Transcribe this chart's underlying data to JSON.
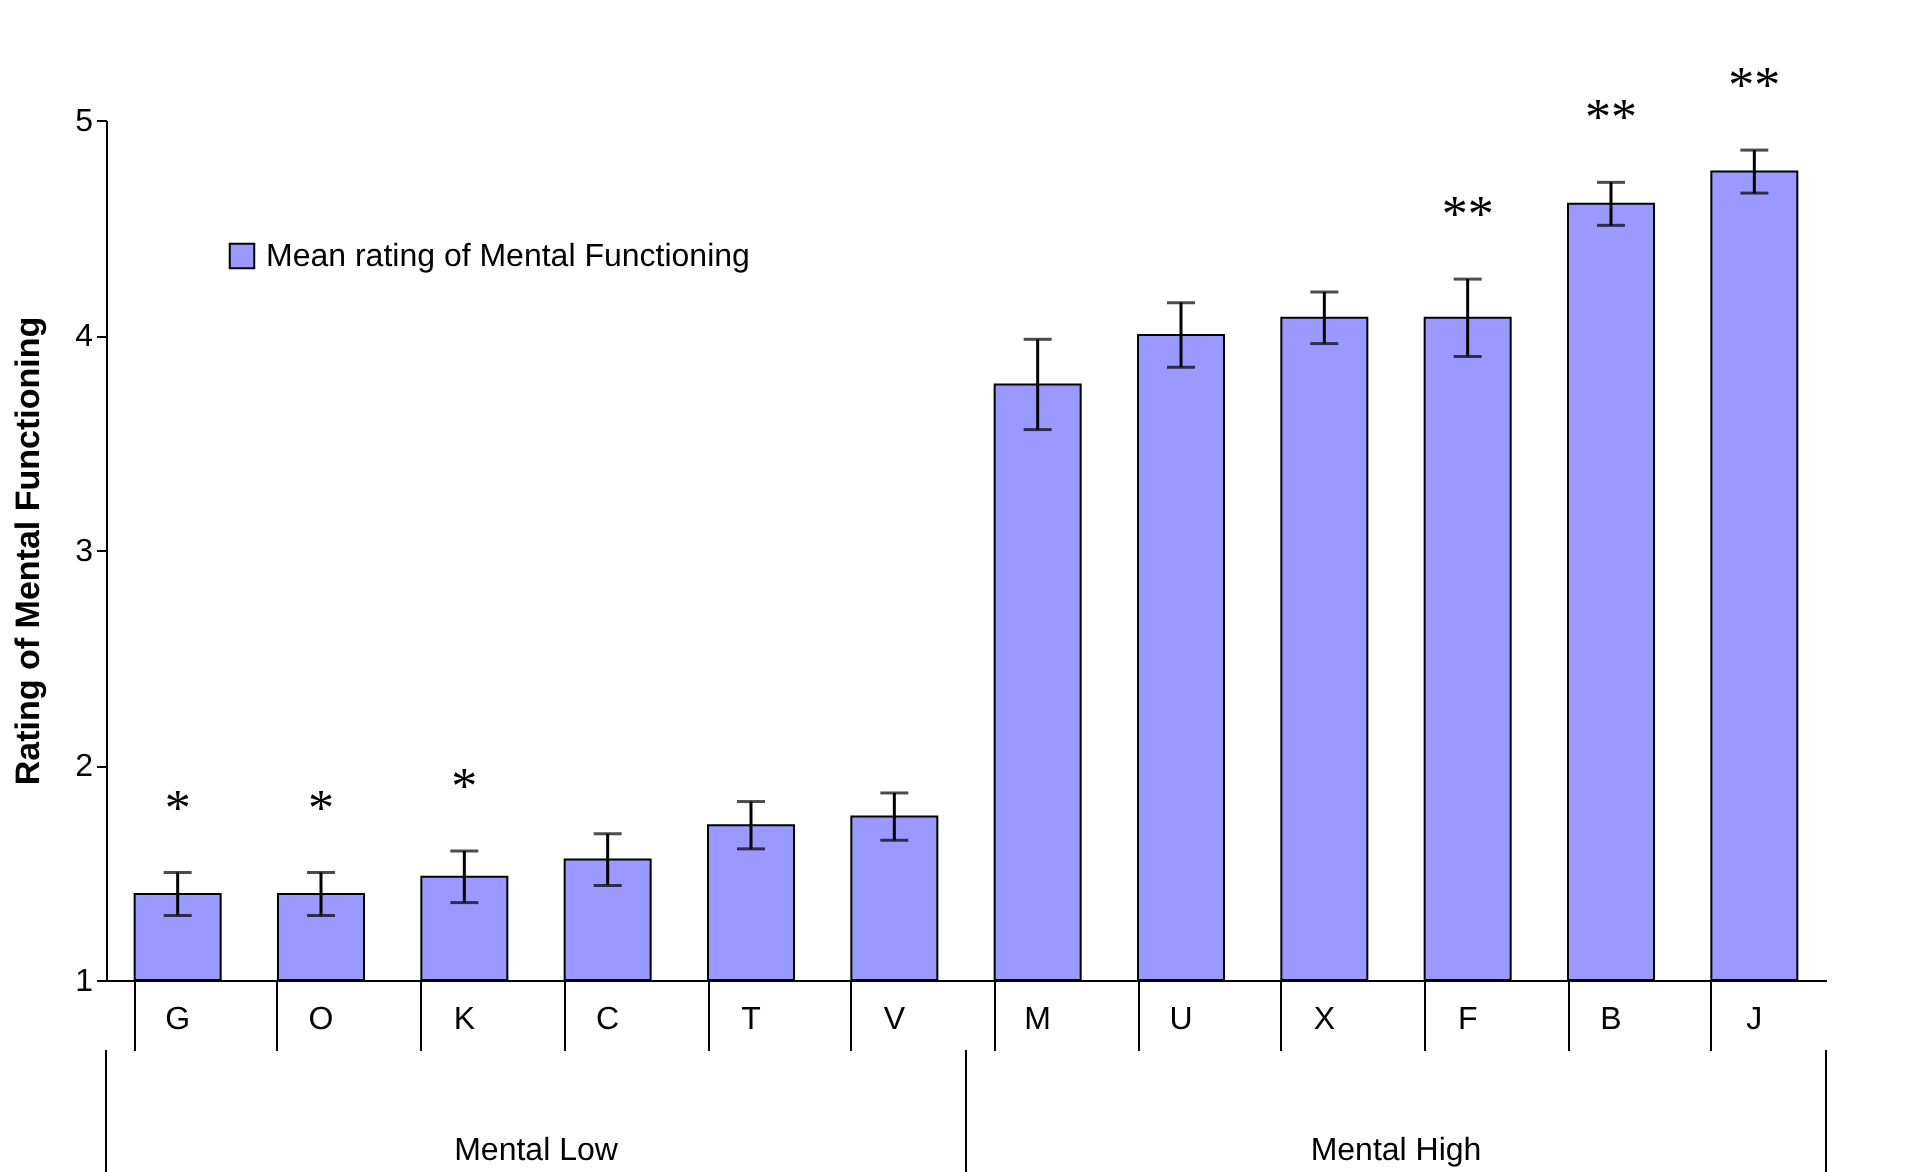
{
  "chart_data": {
    "type": "bar",
    "ylabel": "Rating of Mental Functioning",
    "categories": [
      "G",
      "O",
      "K",
      "C",
      "T",
      "V",
      "M",
      "U",
      "X",
      "F",
      "B",
      "J"
    ],
    "series": [
      {
        "name": "Mean rating of Mental Functioning",
        "color": "#9999ff",
        "values": [
          1.4,
          1.4,
          1.48,
          1.56,
          1.72,
          1.76,
          3.77,
          4.0,
          4.08,
          4.08,
          4.61,
          4.76
        ],
        "errors": [
          0.1,
          0.1,
          0.12,
          0.12,
          0.11,
          0.11,
          0.21,
          0.15,
          0.12,
          0.18,
          0.1,
          0.1
        ]
      }
    ],
    "ylim": [
      1,
      5
    ],
    "yticks": [
      1,
      2,
      3,
      4,
      5
    ],
    "grid": false,
    "legend": "top left",
    "annotations": [
      "*",
      "*",
      "*",
      "**",
      "**",
      "**",
      "Mental Low",
      "Mental High"
    ]
  }
}
